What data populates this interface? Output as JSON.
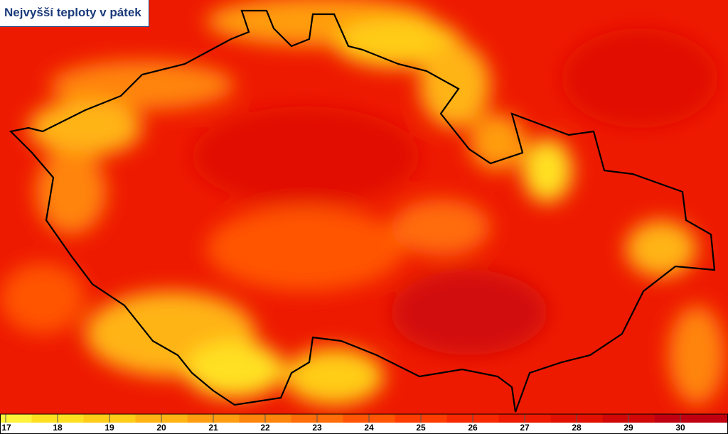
{
  "header": {
    "title": "Nejvyšší teploty v pátek"
  },
  "legend": {
    "labels": [
      "17",
      "18",
      "19",
      "20",
      "21",
      "22",
      "23",
      "24",
      "25",
      "26",
      "27",
      "28",
      "29",
      "30"
    ],
    "colors": [
      "#fff23a",
      "#ffe020",
      "#ffcc18",
      "#ffb414",
      "#ff9c10",
      "#ff840c",
      "#ff6c08",
      "#ff5404",
      "#ff3c00",
      "#f72800",
      "#ee1a00",
      "#e11000",
      "#d20808",
      "#c00010"
    ]
  }
}
